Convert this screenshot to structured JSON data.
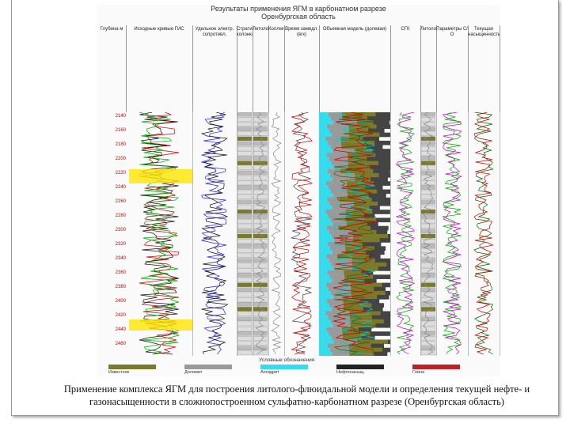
{
  "figure": {
    "title_line1": "Результаты применения ЯГМ в карбонатном разрезе",
    "title_line2": "Оренбургская область",
    "headers": [
      {
        "label": "Глубина м"
      },
      {
        "label": "Исходные кривые ГИС"
      },
      {
        "label": "Удельное электр. сопротивл."
      },
      {
        "label": "Стратиграфическая колонка"
      },
      {
        "label": "Литология"
      },
      {
        "label": "Коллектор"
      },
      {
        "label": "Время замедл. (вгк)"
      },
      {
        "label": "Объемная модель (долевая)"
      },
      {
        "label": "СГК"
      },
      {
        "label": "Литология"
      },
      {
        "label": "Параметры С/О"
      },
      {
        "label": "Текущая насыщенность"
      }
    ],
    "depths": [
      "2140",
      "2160",
      "2180",
      "2200",
      "2220",
      "2240",
      "2260",
      "2280",
      "2300",
      "2320",
      "2340",
      "2360",
      "2380",
      "2400",
      "2420",
      "2440",
      "2460"
    ],
    "legend_title": "Условные обозначения",
    "legend": [
      {
        "label": "Известняк",
        "color": "#7a7a2a"
      },
      {
        "label": "Доломит",
        "color": "#9a9a9a"
      },
      {
        "label": "Ангидрит",
        "color": "#33ddee"
      },
      {
        "label": "Нефтенасыщ.",
        "color": "#222222"
      },
      {
        "label": "Глина",
        "color": "#c0202a"
      }
    ]
  },
  "caption_line1": "Применение комплекса ЯГМ для построения литолого-флюидальной модели и определения текущей нефте- и",
  "caption_line2": "газонасыщенности в сложнопостроенном сульфатно-карбонатном разрезе (Оренбургская область)"
}
